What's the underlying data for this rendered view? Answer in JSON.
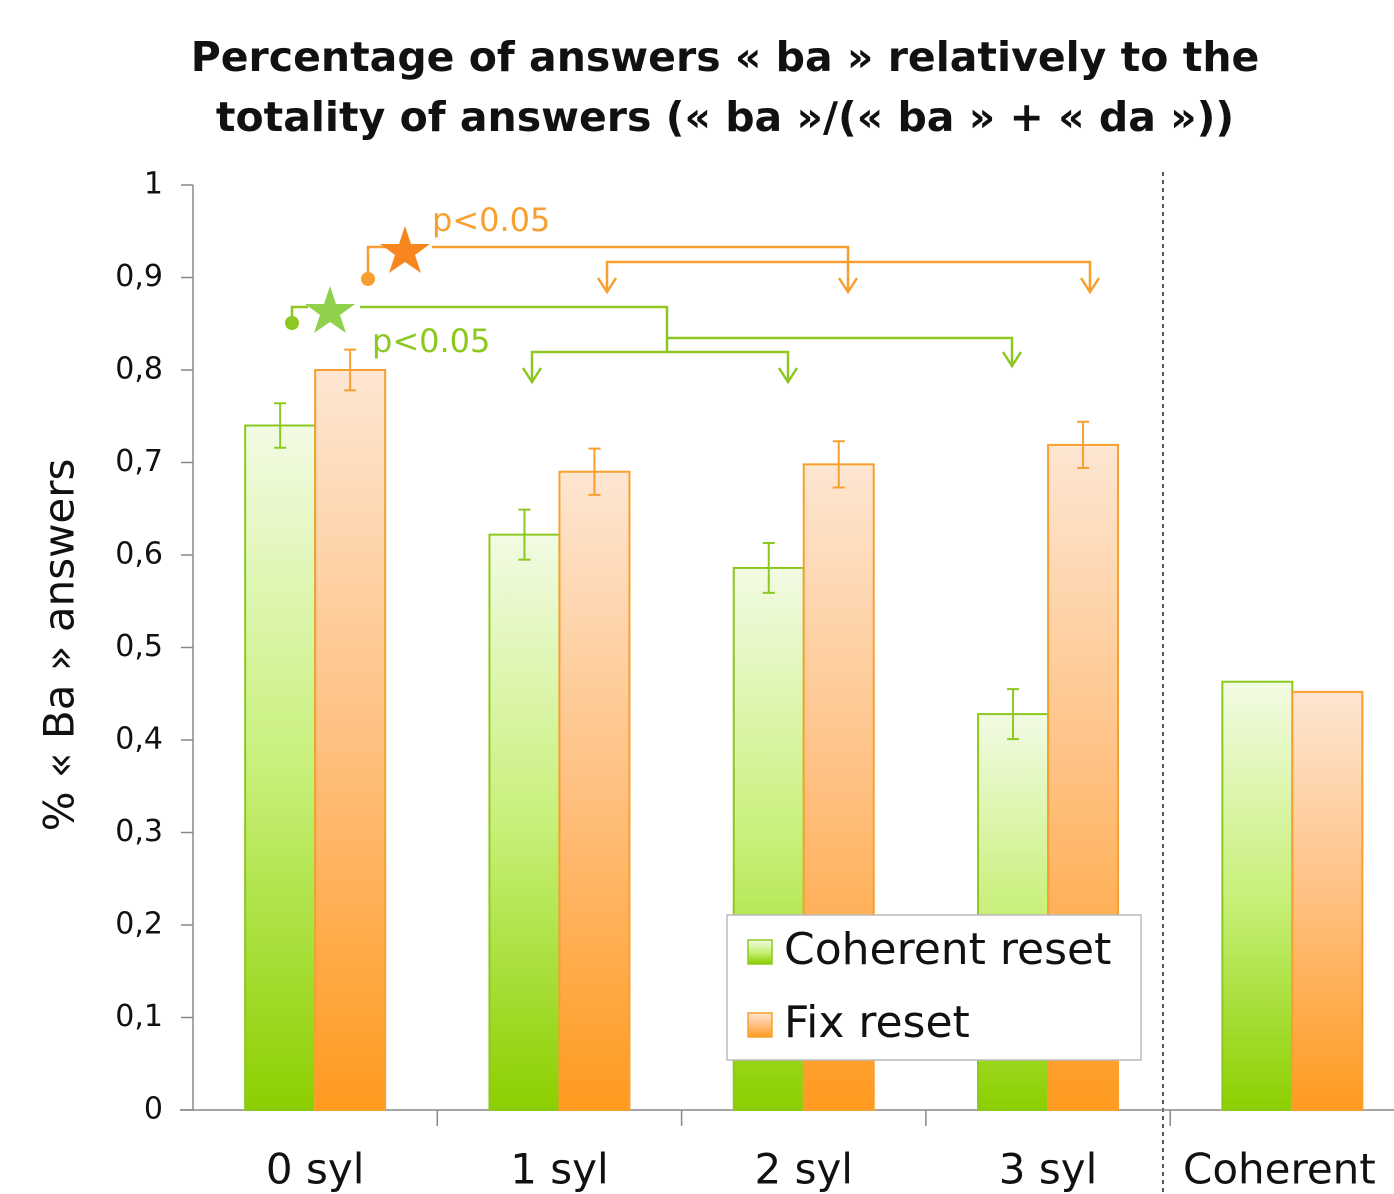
{
  "chart_data": {
    "type": "bar",
    "title": [
      "Percentage of answers  « ba » relatively to the",
      "totality of answers (« ba »/(« ba » + « da »))"
    ],
    "y_label": "% « Ba »  answers",
    "categories": [
      "0 syl",
      "1 syl",
      "2 syl",
      "3 syl",
      "Coherent"
    ],
    "series": [
      {
        "name": "Coherent reset",
        "color": "#8cc820",
        "values": [
          0.74,
          0.622,
          0.586,
          0.428,
          0.463
        ],
        "errors": [
          0.024,
          0.027,
          0.027,
          0.027,
          null
        ]
      },
      {
        "name": "Fix reset",
        "color": "#f7a030",
        "values": [
          0.8,
          0.69,
          0.698,
          0.719,
          0.452
        ],
        "errors": [
          0.022,
          0.025,
          0.025,
          0.025,
          null
        ]
      }
    ],
    "ylim": [
      0,
      1
    ],
    "yticks": [
      0,
      {
        "value": 0.1,
        "label": "0,1"
      },
      {
        "value": 0.2,
        "label": "0,2"
      },
      {
        "value": 0.3,
        "label": "0,3"
      },
      {
        "value": 0.4,
        "label": "0,4"
      },
      {
        "value": 0.5,
        "label": "0,5"
      },
      {
        "value": 0.6,
        "label": "0,6"
      },
      {
        "value": 0.7,
        "label": "0,7"
      },
      {
        "value": 0.8,
        "label": "0,8"
      },
      {
        "value": 0.9,
        "label": "0,9"
      },
      1
    ],
    "annotations": [
      "p<0.05",
      "p<0.05"
    ],
    "grid": false
  }
}
